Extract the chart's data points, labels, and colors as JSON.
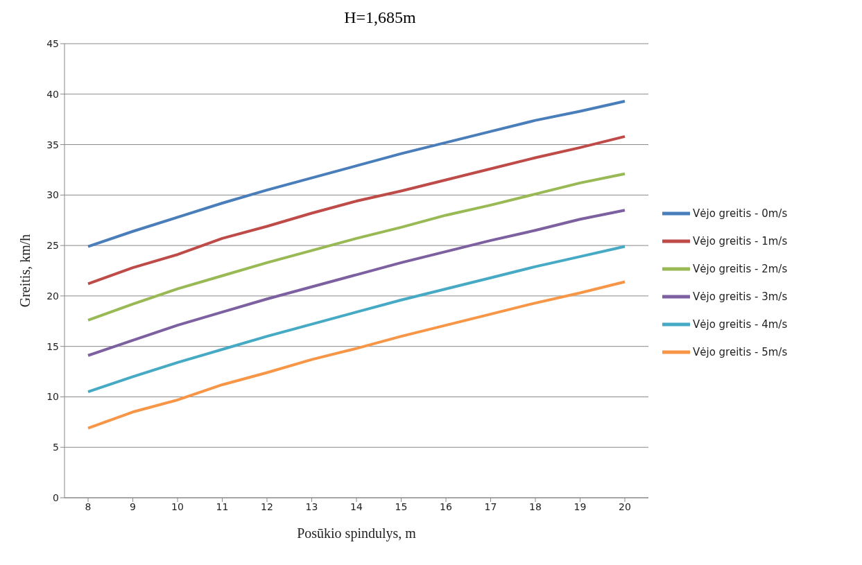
{
  "chart_data": {
    "type": "line",
    "title": "H=1,685m",
    "xlabel": "Posūkio spindulys,  m",
    "ylabel": "Greitis,  km/h",
    "categories": [
      "8",
      "9",
      "10",
      "11",
      "12",
      "13",
      "14",
      "15",
      "16",
      "17",
      "18",
      "19",
      "20"
    ],
    "ylim": [
      0,
      45
    ],
    "yticks": [
      0,
      5,
      10,
      15,
      20,
      25,
      30,
      35,
      40,
      45
    ],
    "grid": "y",
    "legend": "right",
    "marker": "none",
    "line_style": "solid",
    "series": [
      {
        "name": "Vėjo greitis - 0m/s",
        "color": "#4a7ebb",
        "values": [
          24.9,
          26.4,
          27.8,
          29.2,
          30.5,
          31.7,
          32.9,
          34.1,
          35.2,
          36.3,
          37.4,
          38.3,
          39.3
        ]
      },
      {
        "name": "Vėjo greitis - 1m/s",
        "color": "#be4b48",
        "values": [
          21.2,
          22.8,
          24.1,
          25.7,
          26.9,
          28.2,
          29.4,
          30.4,
          31.5,
          32.6,
          33.7,
          34.7,
          35.8
        ]
      },
      {
        "name": "Vėjo greitis - 2m/s",
        "color": "#98b954",
        "values": [
          17.6,
          19.2,
          20.7,
          22.0,
          23.3,
          24.5,
          25.7,
          26.8,
          28.0,
          29.0,
          30.1,
          31.2,
          32.1
        ]
      },
      {
        "name": "Vėjo greitis - 3m/s",
        "color": "#7d60a0",
        "values": [
          14.1,
          15.6,
          17.1,
          18.4,
          19.7,
          20.9,
          22.1,
          23.3,
          24.4,
          25.5,
          26.5,
          27.6,
          28.5
        ]
      },
      {
        "name": "Vėjo greitis - 4m/s",
        "color": "#46aac5",
        "values": [
          10.5,
          12.0,
          13.4,
          14.7,
          16.0,
          17.2,
          18.4,
          19.6,
          20.7,
          21.8,
          22.9,
          23.9,
          24.9
        ]
      },
      {
        "name": "Vėjo greitis - 5m/s",
        "color": "#f79646",
        "values": [
          6.9,
          8.5,
          9.7,
          11.2,
          12.4,
          13.7,
          14.8,
          16.0,
          17.1,
          18.2,
          19.3,
          20.3,
          21.4
        ]
      }
    ]
  }
}
